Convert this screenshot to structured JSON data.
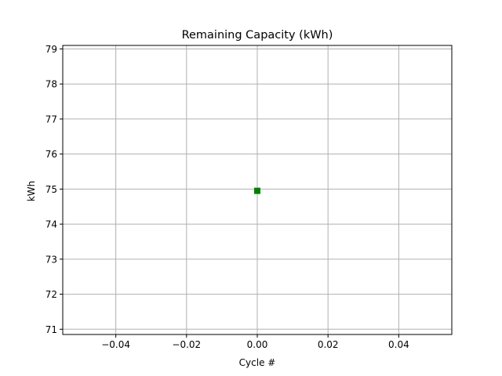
{
  "chart_data": {
    "type": "scatter",
    "title": "Remaining Capacity (kWh)",
    "xlabel": "Cycle #",
    "ylabel": "kWh",
    "xlim": [
      -0.055,
      0.055
    ],
    "ylim": [
      70.85,
      79.1
    ],
    "xticks": [
      -0.04,
      -0.02,
      0.0,
      0.02,
      0.04
    ],
    "xtick_labels": [
      "−0.04",
      "−0.02",
      "0.00",
      "0.02",
      "0.04"
    ],
    "yticks": [
      71,
      72,
      73,
      74,
      75,
      76,
      77,
      78,
      79
    ],
    "ytick_labels": [
      "71",
      "72",
      "73",
      "74",
      "75",
      "76",
      "77",
      "78",
      "79"
    ],
    "grid": true,
    "series": [
      {
        "marker": "square",
        "color": "#008000",
        "points": [
          {
            "x": 0,
            "y": 74.95
          }
        ]
      }
    ]
  }
}
